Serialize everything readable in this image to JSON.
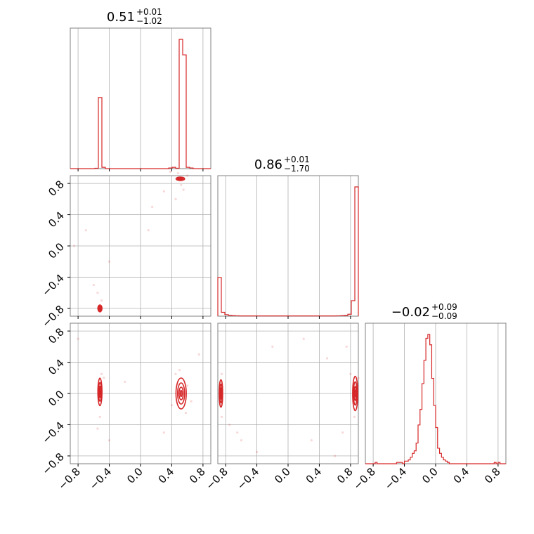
{
  "colors": {
    "series": "#d62728",
    "grid": "#b0b0b0",
    "frame": "#808080"
  },
  "chart_data": {
    "type": "corner",
    "n_params": 3,
    "grid": true,
    "axis_range": [
      -0.9,
      0.9
    ],
    "tick_values": [
      -0.8,
      -0.4,
      0.0,
      0.4,
      0.8
    ],
    "tick_labels": [
      "−0.8",
      "−0.4",
      "0.0",
      "0.4",
      "0.8"
    ],
    "titles": [
      {
        "value": "0.51",
        "plus": "+0.01",
        "minus": "−1.02"
      },
      {
        "value": "0.86",
        "plus": "+0.01",
        "minus": "−1.70"
      },
      {
        "value": "−0.02",
        "plus": "+0.09",
        "minus": "−0.09"
      }
    ],
    "histograms": [
      {
        "param": 0,
        "bin_edges": [
          -0.9,
          -0.855,
          -0.81,
          -0.765,
          -0.72,
          -0.675,
          -0.63,
          -0.585,
          -0.54,
          -0.495,
          -0.45,
          -0.405,
          -0.36,
          -0.315,
          -0.27,
          -0.225,
          -0.18,
          -0.135,
          -0.09,
          -0.045,
          0.0,
          0.045,
          0.09,
          0.135,
          0.18,
          0.225,
          0.27,
          0.315,
          0.36,
          0.405,
          0.45,
          0.495,
          0.54,
          0.585,
          0.63,
          0.675,
          0.72,
          0.765,
          0.81,
          0.855,
          0.9
        ],
        "counts": [
          0,
          0,
          0,
          0,
          0,
          0,
          0,
          0.003,
          0.55,
          0.01,
          0,
          0,
          0,
          0,
          0,
          0,
          0,
          0,
          0,
          0,
          0,
          0,
          0,
          0,
          0,
          0,
          0,
          0,
          0.005,
          0.01,
          0.003,
          1.0,
          0.88,
          0.01,
          0.005,
          0,
          0,
          0,
          0,
          0
        ]
      },
      {
        "param": 1,
        "bin_edges": [
          -0.9,
          -0.855,
          -0.81,
          -0.765,
          -0.72,
          -0.675,
          -0.63,
          -0.585,
          -0.54,
          -0.495,
          -0.45,
          -0.405,
          -0.36,
          -0.315,
          -0.27,
          -0.225,
          -0.18,
          -0.135,
          -0.09,
          -0.045,
          0.0,
          0.045,
          0.09,
          0.135,
          0.18,
          0.225,
          0.27,
          0.315,
          0.36,
          0.405,
          0.45,
          0.495,
          0.54,
          0.585,
          0.63,
          0.675,
          0.72,
          0.765,
          0.81,
          0.855,
          0.9
        ],
        "counts": [
          0.3,
          0.03,
          0.012,
          0.006,
          0.004,
          0.003,
          0.002,
          0.002,
          0.002,
          0.002,
          0.002,
          0.002,
          0.002,
          0.002,
          0.002,
          0.002,
          0.002,
          0.002,
          0.002,
          0.002,
          0.002,
          0.002,
          0.002,
          0.002,
          0.002,
          0.002,
          0.002,
          0.002,
          0.002,
          0.002,
          0.002,
          0.002,
          0.002,
          0.002,
          0.003,
          0.004,
          0.006,
          0.015,
          0.12,
          1.0
        ]
      },
      {
        "param": 2,
        "bin_edges": [
          -0.9,
          -0.855,
          -0.81,
          -0.765,
          -0.72,
          -0.675,
          -0.63,
          -0.585,
          -0.54,
          -0.495,
          -0.45,
          -0.405,
          -0.36,
          -0.315,
          -0.27,
          -0.225,
          -0.18,
          -0.135,
          -0.09,
          -0.045,
          0.0,
          0.045,
          0.09,
          0.135,
          0.18,
          0.225,
          0.27,
          0.315,
          0.36,
          0.405,
          0.45,
          0.495,
          0.54,
          0.585,
          0.63,
          0.675,
          0.72,
          0.765,
          0.81,
          0.855,
          0.9
        ],
        "bin_width": 0.025,
        "dense_range": [
          -0.9,
          0.9
        ],
        "dense_counts": [
          0,
          0,
          0,
          0,
          0,
          0.01,
          0,
          0,
          0,
          0,
          0,
          0,
          0,
          0,
          0,
          0,
          0.01,
          0.01,
          0.01,
          0,
          0.02,
          0.02,
          0.03,
          0.05,
          0.08,
          0.1,
          0.16,
          0.3,
          0.42,
          0.62,
          0.8,
          0.97,
          1.0,
          0.92,
          0.66,
          0.45,
          0.28,
          0.12,
          0.08,
          0.05,
          0.03,
          0.02,
          0.01,
          0,
          0,
          0,
          0,
          0,
          0,
          0,
          0,
          0,
          0,
          0,
          0,
          0,
          0,
          0,
          0,
          0,
          0,
          0,
          0,
          0,
          0,
          0,
          0.01,
          0,
          0.01,
          0,
          0,
          0
        ]
      }
    ],
    "pair_panels": [
      {
        "x_param": 0,
        "y_param": 1,
        "modes": [
          {
            "x": 0.51,
            "y": 0.86,
            "sx": 0.025,
            "sy": 0.01
          },
          {
            "x": -0.52,
            "y": -0.8,
            "sx": 0.012,
            "sy": 0.02
          }
        ],
        "scatter": [
          [
            0.52,
            0.78
          ],
          [
            0.55,
            0.72
          ],
          [
            0.48,
            0.93
          ],
          [
            0.3,
            0.7
          ],
          [
            0.15,
            0.5
          ],
          [
            -0.4,
            -0.2
          ],
          [
            -0.55,
            -0.6
          ],
          [
            -0.6,
            -0.5
          ],
          [
            -0.5,
            -0.7
          ],
          [
            -0.85,
            0.0
          ],
          [
            0.45,
            0.6
          ],
          [
            0.6,
            0.9
          ],
          [
            0.1,
            0.2
          ],
          [
            -0.7,
            0.2
          ],
          [
            0.38,
            0.95
          ]
        ]
      },
      {
        "x_param": 0,
        "y_param": 2,
        "modes": [
          {
            "x": 0.52,
            "y": 0.0,
            "sx": 0.03,
            "sy": 0.09
          },
          {
            "x": -0.52,
            "y": 0.02,
            "sx": 0.012,
            "sy": 0.08
          }
        ],
        "scatter": [
          [
            0.45,
            0.25
          ],
          [
            0.58,
            -0.25
          ],
          [
            0.5,
            0.3
          ],
          [
            0.6,
            0.1
          ],
          [
            -0.5,
            0.25
          ],
          [
            -0.52,
            -0.3
          ],
          [
            -0.55,
            -0.45
          ],
          [
            -0.47,
            0.2
          ],
          [
            0.4,
            -0.15
          ],
          [
            0.65,
            -0.1
          ],
          [
            -0.8,
            0.7
          ],
          [
            0.3,
            -0.5
          ],
          [
            -0.4,
            -0.6
          ],
          [
            0.75,
            0.5
          ],
          [
            -0.2,
            0.15
          ]
        ]
      },
      {
        "x_param": 1,
        "y_param": 2,
        "modes": [
          {
            "x": 0.86,
            "y": 0.0,
            "sx": 0.015,
            "sy": 0.1
          },
          {
            "x": -0.86,
            "y": 0.0,
            "sx": 0.01,
            "sy": 0.08
          }
        ],
        "scatter": [
          [
            0.8,
            0.25
          ],
          [
            0.85,
            -0.3
          ],
          [
            0.9,
            0.2
          ],
          [
            -0.85,
            -0.3
          ],
          [
            -0.75,
            -0.4
          ],
          [
            -0.6,
            -0.6
          ],
          [
            -0.4,
            -0.75
          ],
          [
            -0.85,
            0.25
          ],
          [
            0.75,
            0.6
          ],
          [
            0.6,
            -0.8
          ],
          [
            0.2,
            0.7
          ],
          [
            -0.2,
            0.6
          ],
          [
            0.3,
            -0.6
          ],
          [
            0.7,
            -0.5
          ],
          [
            -0.65,
            -0.5
          ],
          [
            0.5,
            0.45
          ]
        ]
      }
    ]
  }
}
